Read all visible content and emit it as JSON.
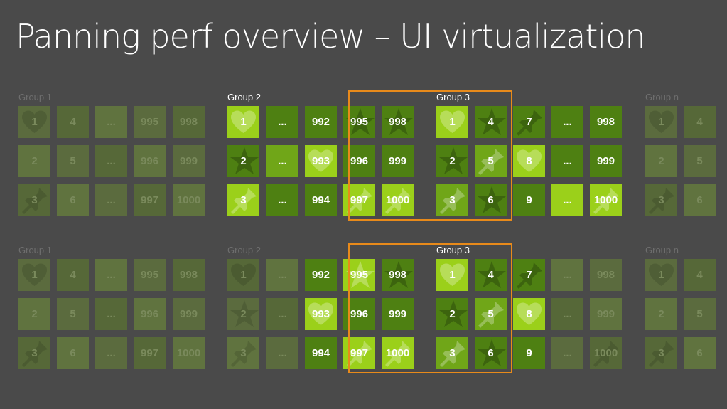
{
  "title": "Panning perf overview – UI virtualization",
  "colors": {
    "background": "#4a4a4a",
    "frame": "#e88a1a",
    "bright_green": "#9bd01a",
    "mid_green": "#70a618",
    "dark_green": "#4e8012",
    "faded_tile": "#5d6f3f"
  },
  "sections": [
    {
      "groups": [
        {
          "label": "Group 1",
          "tiles": [
            {
              "text": "1",
              "icon": "heart-icon"
            },
            {
              "text": "4",
              "icon": ""
            },
            {
              "text": "...",
              "icon": ""
            },
            {
              "text": "995",
              "icon": ""
            },
            {
              "text": "998",
              "icon": ""
            },
            {
              "text": "2",
              "icon": ""
            },
            {
              "text": "5",
              "icon": ""
            },
            {
              "text": "...",
              "icon": ""
            },
            {
              "text": "996",
              "icon": ""
            },
            {
              "text": "999",
              "icon": ""
            },
            {
              "text": "3",
              "icon": "pin-icon"
            },
            {
              "text": "6",
              "icon": ""
            },
            {
              "text": "...",
              "icon": ""
            },
            {
              "text": "997",
              "icon": ""
            },
            {
              "text": "1000",
              "icon": ""
            }
          ]
        },
        {
          "label": "Group 2",
          "tiles": [
            {
              "text": "1",
              "icon": "heart-icon"
            },
            {
              "text": "...",
              "icon": ""
            },
            {
              "text": "992",
              "icon": ""
            },
            {
              "text": "995",
              "icon": "star-icon"
            },
            {
              "text": "998",
              "icon": "star-icon"
            },
            {
              "text": "2",
              "icon": "star-icon"
            },
            {
              "text": "...",
              "icon": ""
            },
            {
              "text": "993",
              "icon": "heart-icon"
            },
            {
              "text": "996",
              "icon": ""
            },
            {
              "text": "999",
              "icon": ""
            },
            {
              "text": "3",
              "icon": "pin-icon"
            },
            {
              "text": "...",
              "icon": ""
            },
            {
              "text": "994",
              "icon": ""
            },
            {
              "text": "997",
              "icon": "pin-icon"
            },
            {
              "text": "1000",
              "icon": "pin-icon"
            }
          ]
        },
        {
          "label": "Group 3",
          "tiles": [
            {
              "text": "1",
              "icon": "heart-icon"
            },
            {
              "text": "4",
              "icon": "star-icon"
            },
            {
              "text": "7",
              "icon": "pin-icon"
            },
            {
              "text": "...",
              "icon": ""
            },
            {
              "text": "998",
              "icon": ""
            },
            {
              "text": "2",
              "icon": "star-icon"
            },
            {
              "text": "5",
              "icon": "pin-icon"
            },
            {
              "text": "8",
              "icon": "heart-icon"
            },
            {
              "text": "...",
              "icon": ""
            },
            {
              "text": "999",
              "icon": ""
            },
            {
              "text": "3",
              "icon": "pin-icon"
            },
            {
              "text": "6",
              "icon": "star-icon"
            },
            {
              "text": "9",
              "icon": ""
            },
            {
              "text": "...",
              "icon": ""
            },
            {
              "text": "1000",
              "icon": "pin-icon"
            }
          ]
        },
        {
          "label": "Group n",
          "tiles": [
            {
              "text": "1",
              "icon": "heart-icon"
            },
            {
              "text": "4",
              "icon": ""
            },
            {
              "text": "2",
              "icon": ""
            },
            {
              "text": "5",
              "icon": ""
            },
            {
              "text": "3",
              "icon": "pin-icon"
            },
            {
              "text": "6",
              "icon": ""
            }
          ]
        }
      ]
    },
    {
      "groups": [
        {
          "label": "Group 1",
          "tiles": [
            {
              "text": "1",
              "icon": "heart-icon"
            },
            {
              "text": "4",
              "icon": ""
            },
            {
              "text": "...",
              "icon": ""
            },
            {
              "text": "995",
              "icon": ""
            },
            {
              "text": "998",
              "icon": ""
            },
            {
              "text": "2",
              "icon": ""
            },
            {
              "text": "5",
              "icon": ""
            },
            {
              "text": "...",
              "icon": ""
            },
            {
              "text": "996",
              "icon": ""
            },
            {
              "text": "999",
              "icon": ""
            },
            {
              "text": "3",
              "icon": "pin-icon"
            },
            {
              "text": "6",
              "icon": ""
            },
            {
              "text": "...",
              "icon": ""
            },
            {
              "text": "997",
              "icon": ""
            },
            {
              "text": "1000",
              "icon": ""
            }
          ]
        },
        {
          "label": "Group 2",
          "tiles": [
            {
              "text": "1",
              "icon": "heart-icon"
            },
            {
              "text": "...",
              "icon": ""
            },
            {
              "text": "992",
              "icon": ""
            },
            {
              "text": "995",
              "icon": "star-icon"
            },
            {
              "text": "998",
              "icon": "star-icon"
            },
            {
              "text": "2",
              "icon": "star-icon"
            },
            {
              "text": "...",
              "icon": ""
            },
            {
              "text": "993",
              "icon": "heart-icon"
            },
            {
              "text": "996",
              "icon": ""
            },
            {
              "text": "999",
              "icon": ""
            },
            {
              "text": "3",
              "icon": "pin-icon"
            },
            {
              "text": "...",
              "icon": ""
            },
            {
              "text": "994",
              "icon": ""
            },
            {
              "text": "997",
              "icon": "pin-icon"
            },
            {
              "text": "1000",
              "icon": "pin-icon"
            }
          ]
        },
        {
          "label": "Group 3",
          "tiles": [
            {
              "text": "1",
              "icon": "heart-icon"
            },
            {
              "text": "4",
              "icon": "star-icon"
            },
            {
              "text": "7",
              "icon": "pin-icon"
            },
            {
              "text": "...",
              "icon": ""
            },
            {
              "text": "998",
              "icon": ""
            },
            {
              "text": "2",
              "icon": "star-icon"
            },
            {
              "text": "5",
              "icon": "pin-icon"
            },
            {
              "text": "8",
              "icon": "heart-icon"
            },
            {
              "text": "...",
              "icon": ""
            },
            {
              "text": "999",
              "icon": ""
            },
            {
              "text": "3",
              "icon": "pin-icon"
            },
            {
              "text": "6",
              "icon": "star-icon"
            },
            {
              "text": "9",
              "icon": ""
            },
            {
              "text": "...",
              "icon": ""
            },
            {
              "text": "1000",
              "icon": "pin-icon"
            }
          ]
        },
        {
          "label": "Group n",
          "tiles": [
            {
              "text": "1",
              "icon": "heart-icon"
            },
            {
              "text": "4",
              "icon": ""
            },
            {
              "text": "2",
              "icon": ""
            },
            {
              "text": "5",
              "icon": ""
            },
            {
              "text": "3",
              "icon": "pin-icon"
            },
            {
              "text": "6",
              "icon": ""
            }
          ]
        }
      ]
    }
  ]
}
